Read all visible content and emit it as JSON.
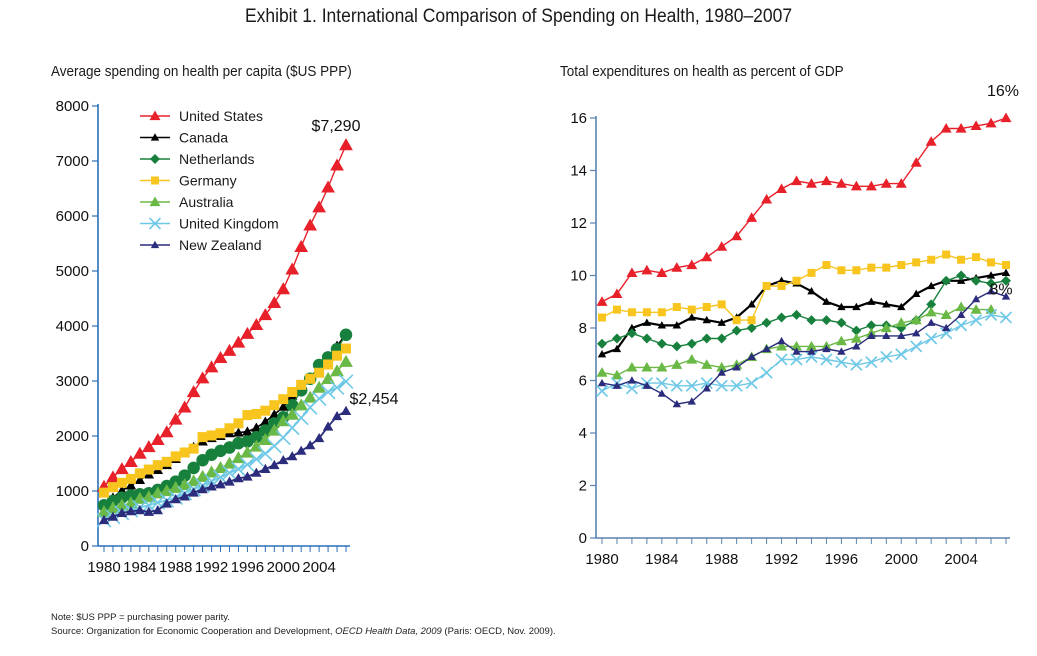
{
  "title": "Exhibit 1. International Comparison of Spending on Health, 1980–2007",
  "footnote": {
    "note": "Note: $US PPP = purchasing power parity.",
    "source_prefix": "Source: Organization for Economic Cooperation and Development, ",
    "source_italic": "OECD Health Data, 2009",
    "source_suffix": " (Paris: OECD, Nov. 2009)."
  },
  "series_styles": [
    {
      "name": "United States",
      "color": "#e8202a",
      "marker": "triangle"
    },
    {
      "name": "Canada",
      "color": "#000000",
      "marker": "triangle-small"
    },
    {
      "name": "Netherlands",
      "color": "#17803c",
      "marker": "diamond"
    },
    {
      "name": "Germany",
      "color": "#f7c51e",
      "marker": "square"
    },
    {
      "name": "Australia",
      "color": "#6ab845",
      "marker": "triangle"
    },
    {
      "name": "United Kingdom",
      "color": "#6ec8e6",
      "marker": "x"
    },
    {
      "name": "New Zealand",
      "color": "#2b2d7c",
      "marker": "triangle-small"
    }
  ],
  "chart_data": [
    {
      "type": "line",
      "title": "Average spending on health per capita ($US PPP)",
      "xlabel": "",
      "ylabel": "",
      "x": [
        1980,
        1981,
        1982,
        1983,
        1984,
        1985,
        1986,
        1987,
        1988,
        1989,
        1990,
        1991,
        1992,
        1993,
        1994,
        1995,
        1996,
        1997,
        1998,
        1999,
        2000,
        2001,
        2002,
        2003,
        2004,
        2005,
        2006,
        2007
      ],
      "xticks": [
        "1980",
        "1984",
        "1988",
        "1992",
        "1996",
        "2000",
        "2004"
      ],
      "yticks": [
        "0",
        "1000",
        "2000",
        "3000",
        "4000",
        "5000",
        "6000",
        "7000",
        "8000"
      ],
      "ylim": [
        0,
        8000
      ],
      "grid": false,
      "legend": "top-left",
      "annotations": [
        {
          "text": "$7,290",
          "series": "United States",
          "year": 2007
        },
        {
          "text": "$2,454",
          "series": "New Zealand",
          "year": 2007
        }
      ],
      "series": [
        {
          "name": "United States",
          "values": [
            1080,
            1250,
            1400,
            1530,
            1680,
            1800,
            1930,
            2070,
            2300,
            2520,
            2800,
            3050,
            3250,
            3420,
            3550,
            3700,
            3860,
            4020,
            4200,
            4420,
            4670,
            5030,
            5440,
            5830,
            6160,
            6520,
            6920,
            7290
          ]
        },
        {
          "name": "Canada",
          "values": [
            740,
            880,
            1010,
            1100,
            1200,
            1300,
            1380,
            1470,
            1580,
            1700,
            1800,
            1900,
            1960,
            2000,
            2050,
            2060,
            2080,
            2150,
            2260,
            2390,
            2530,
            2730,
            2900,
            3040,
            3200,
            3400,
            3640,
            3850
          ]
        },
        {
          "name": "Netherlands",
          "values": [
            740,
            820,
            880,
            920,
            940,
            960,
            1020,
            1090,
            1170,
            1280,
            1420,
            1560,
            1660,
            1730,
            1790,
            1870,
            1900,
            1980,
            2100,
            2230,
            2340,
            2560,
            2830,
            3040,
            3290,
            3430,
            3580,
            3840
          ]
        },
        {
          "name": "Germany",
          "values": [
            970,
            1070,
            1150,
            1220,
            1320,
            1390,
            1470,
            1530,
            1630,
            1700,
            1770,
            1980,
            2010,
            2050,
            2140,
            2230,
            2380,
            2400,
            2460,
            2560,
            2670,
            2800,
            2930,
            3040,
            3150,
            3300,
            3460,
            3590
          ]
        },
        {
          "name": "Australia",
          "values": [
            620,
            690,
            740,
            780,
            860,
            890,
            960,
            1000,
            1060,
            1110,
            1180,
            1260,
            1340,
            1420,
            1500,
            1600,
            1700,
            1810,
            1930,
            2100,
            2270,
            2390,
            2560,
            2700,
            2880,
            3040,
            3180,
            3350
          ]
        },
        {
          "name": "United Kingdom",
          "values": [
            470,
            530,
            600,
            650,
            700,
            740,
            790,
            830,
            880,
            960,
            1030,
            1100,
            1180,
            1250,
            1330,
            1400,
            1480,
            1580,
            1680,
            1820,
            1970,
            2150,
            2330,
            2520,
            2680,
            2800,
            2880,
            2990
          ]
        },
        {
          "name": "New Zealand",
          "values": [
            470,
            530,
            600,
            630,
            650,
            620,
            650,
            770,
            850,
            900,
            970,
            1030,
            1080,
            1120,
            1170,
            1230,
            1260,
            1330,
            1400,
            1470,
            1560,
            1630,
            1730,
            1830,
            1960,
            2170,
            2360,
            2454
          ]
        }
      ]
    },
    {
      "type": "line",
      "title": "Total expenditures on health as percent of GDP",
      "xlabel": "",
      "ylabel": "",
      "x": [
        1980,
        1981,
        1982,
        1983,
        1984,
        1985,
        1986,
        1987,
        1988,
        1989,
        1990,
        1991,
        1992,
        1993,
        1994,
        1995,
        1996,
        1997,
        1998,
        1999,
        2000,
        2001,
        2002,
        2003,
        2004,
        2005,
        2006,
        2007
      ],
      "xticks": [
        "1980",
        "1984",
        "1988",
        "1992",
        "1996",
        "2000",
        "2004"
      ],
      "yticks": [
        "0",
        "2",
        "4",
        "6",
        "8",
        "10",
        "12",
        "14",
        "16"
      ],
      "ylim": [
        0,
        16
      ],
      "grid": false,
      "legend": "none",
      "annotations": [
        {
          "text": "16%",
          "series": "United States",
          "year": 2007
        },
        {
          "text": "8%",
          "series": "United Kingdom",
          "year": 2007
        }
      ],
      "series": [
        {
          "name": "United States",
          "values": [
            9.0,
            9.3,
            10.1,
            10.2,
            10.1,
            10.3,
            10.4,
            10.7,
            11.1,
            11.5,
            12.2,
            12.9,
            13.3,
            13.6,
            13.5,
            13.6,
            13.5,
            13.4,
            13.4,
            13.5,
            13.5,
            14.3,
            15.1,
            15.6,
            15.6,
            15.7,
            15.8,
            16.0
          ]
        },
        {
          "name": "Canada",
          "values": [
            7.0,
            7.2,
            8.0,
            8.2,
            8.1,
            8.1,
            8.4,
            8.3,
            8.2,
            8.4,
            8.9,
            9.6,
            9.8,
            9.7,
            9.4,
            9.0,
            8.8,
            8.8,
            9.0,
            8.9,
            8.8,
            9.3,
            9.6,
            9.8,
            9.8,
            9.9,
            10.0,
            10.1
          ]
        },
        {
          "name": "Netherlands",
          "values": [
            7.4,
            7.6,
            7.8,
            7.6,
            7.4,
            7.3,
            7.4,
            7.6,
            7.6,
            7.9,
            8.0,
            8.2,
            8.4,
            8.5,
            8.3,
            8.3,
            8.2,
            7.9,
            8.1,
            8.1,
            8.0,
            8.3,
            8.9,
            9.8,
            10.0,
            9.8,
            9.7,
            9.8
          ]
        },
        {
          "name": "Germany",
          "values": [
            8.4,
            8.7,
            8.6,
            8.6,
            8.6,
            8.8,
            8.7,
            8.8,
            8.9,
            8.3,
            8.3,
            9.6,
            9.6,
            9.8,
            10.1,
            10.4,
            10.2,
            10.2,
            10.3,
            10.3,
            10.4,
            10.5,
            10.6,
            10.8,
            10.6,
            10.7,
            10.5,
            10.4
          ]
        },
        {
          "name": "Australia",
          "values": [
            6.3,
            6.2,
            6.5,
            6.5,
            6.5,
            6.6,
            6.8,
            6.6,
            6.5,
            6.6,
            6.9,
            7.2,
            7.3,
            7.3,
            7.3,
            7.3,
            7.5,
            7.6,
            7.8,
            8.0,
            8.2,
            8.3,
            8.6,
            8.5,
            8.8,
            8.7,
            8.7,
            null
          ]
        },
        {
          "name": "United Kingdom",
          "values": [
            5.6,
            5.9,
            5.7,
            5.9,
            5.9,
            5.8,
            5.8,
            5.9,
            5.8,
            5.8,
            5.9,
            6.3,
            6.8,
            6.8,
            6.9,
            6.8,
            6.7,
            6.6,
            6.7,
            6.9,
            7.0,
            7.3,
            7.6,
            7.8,
            8.1,
            8.3,
            8.5,
            8.4
          ]
        },
        {
          "name": "New Zealand",
          "values": [
            5.9,
            5.8,
            6.0,
            5.8,
            5.5,
            5.1,
            5.2,
            5.7,
            6.3,
            6.5,
            6.9,
            7.2,
            7.5,
            7.1,
            7.1,
            7.2,
            7.1,
            7.3,
            7.7,
            7.7,
            7.7,
            7.8,
            8.2,
            8.0,
            8.5,
            9.1,
            9.4,
            9.2
          ]
        }
      ]
    }
  ]
}
